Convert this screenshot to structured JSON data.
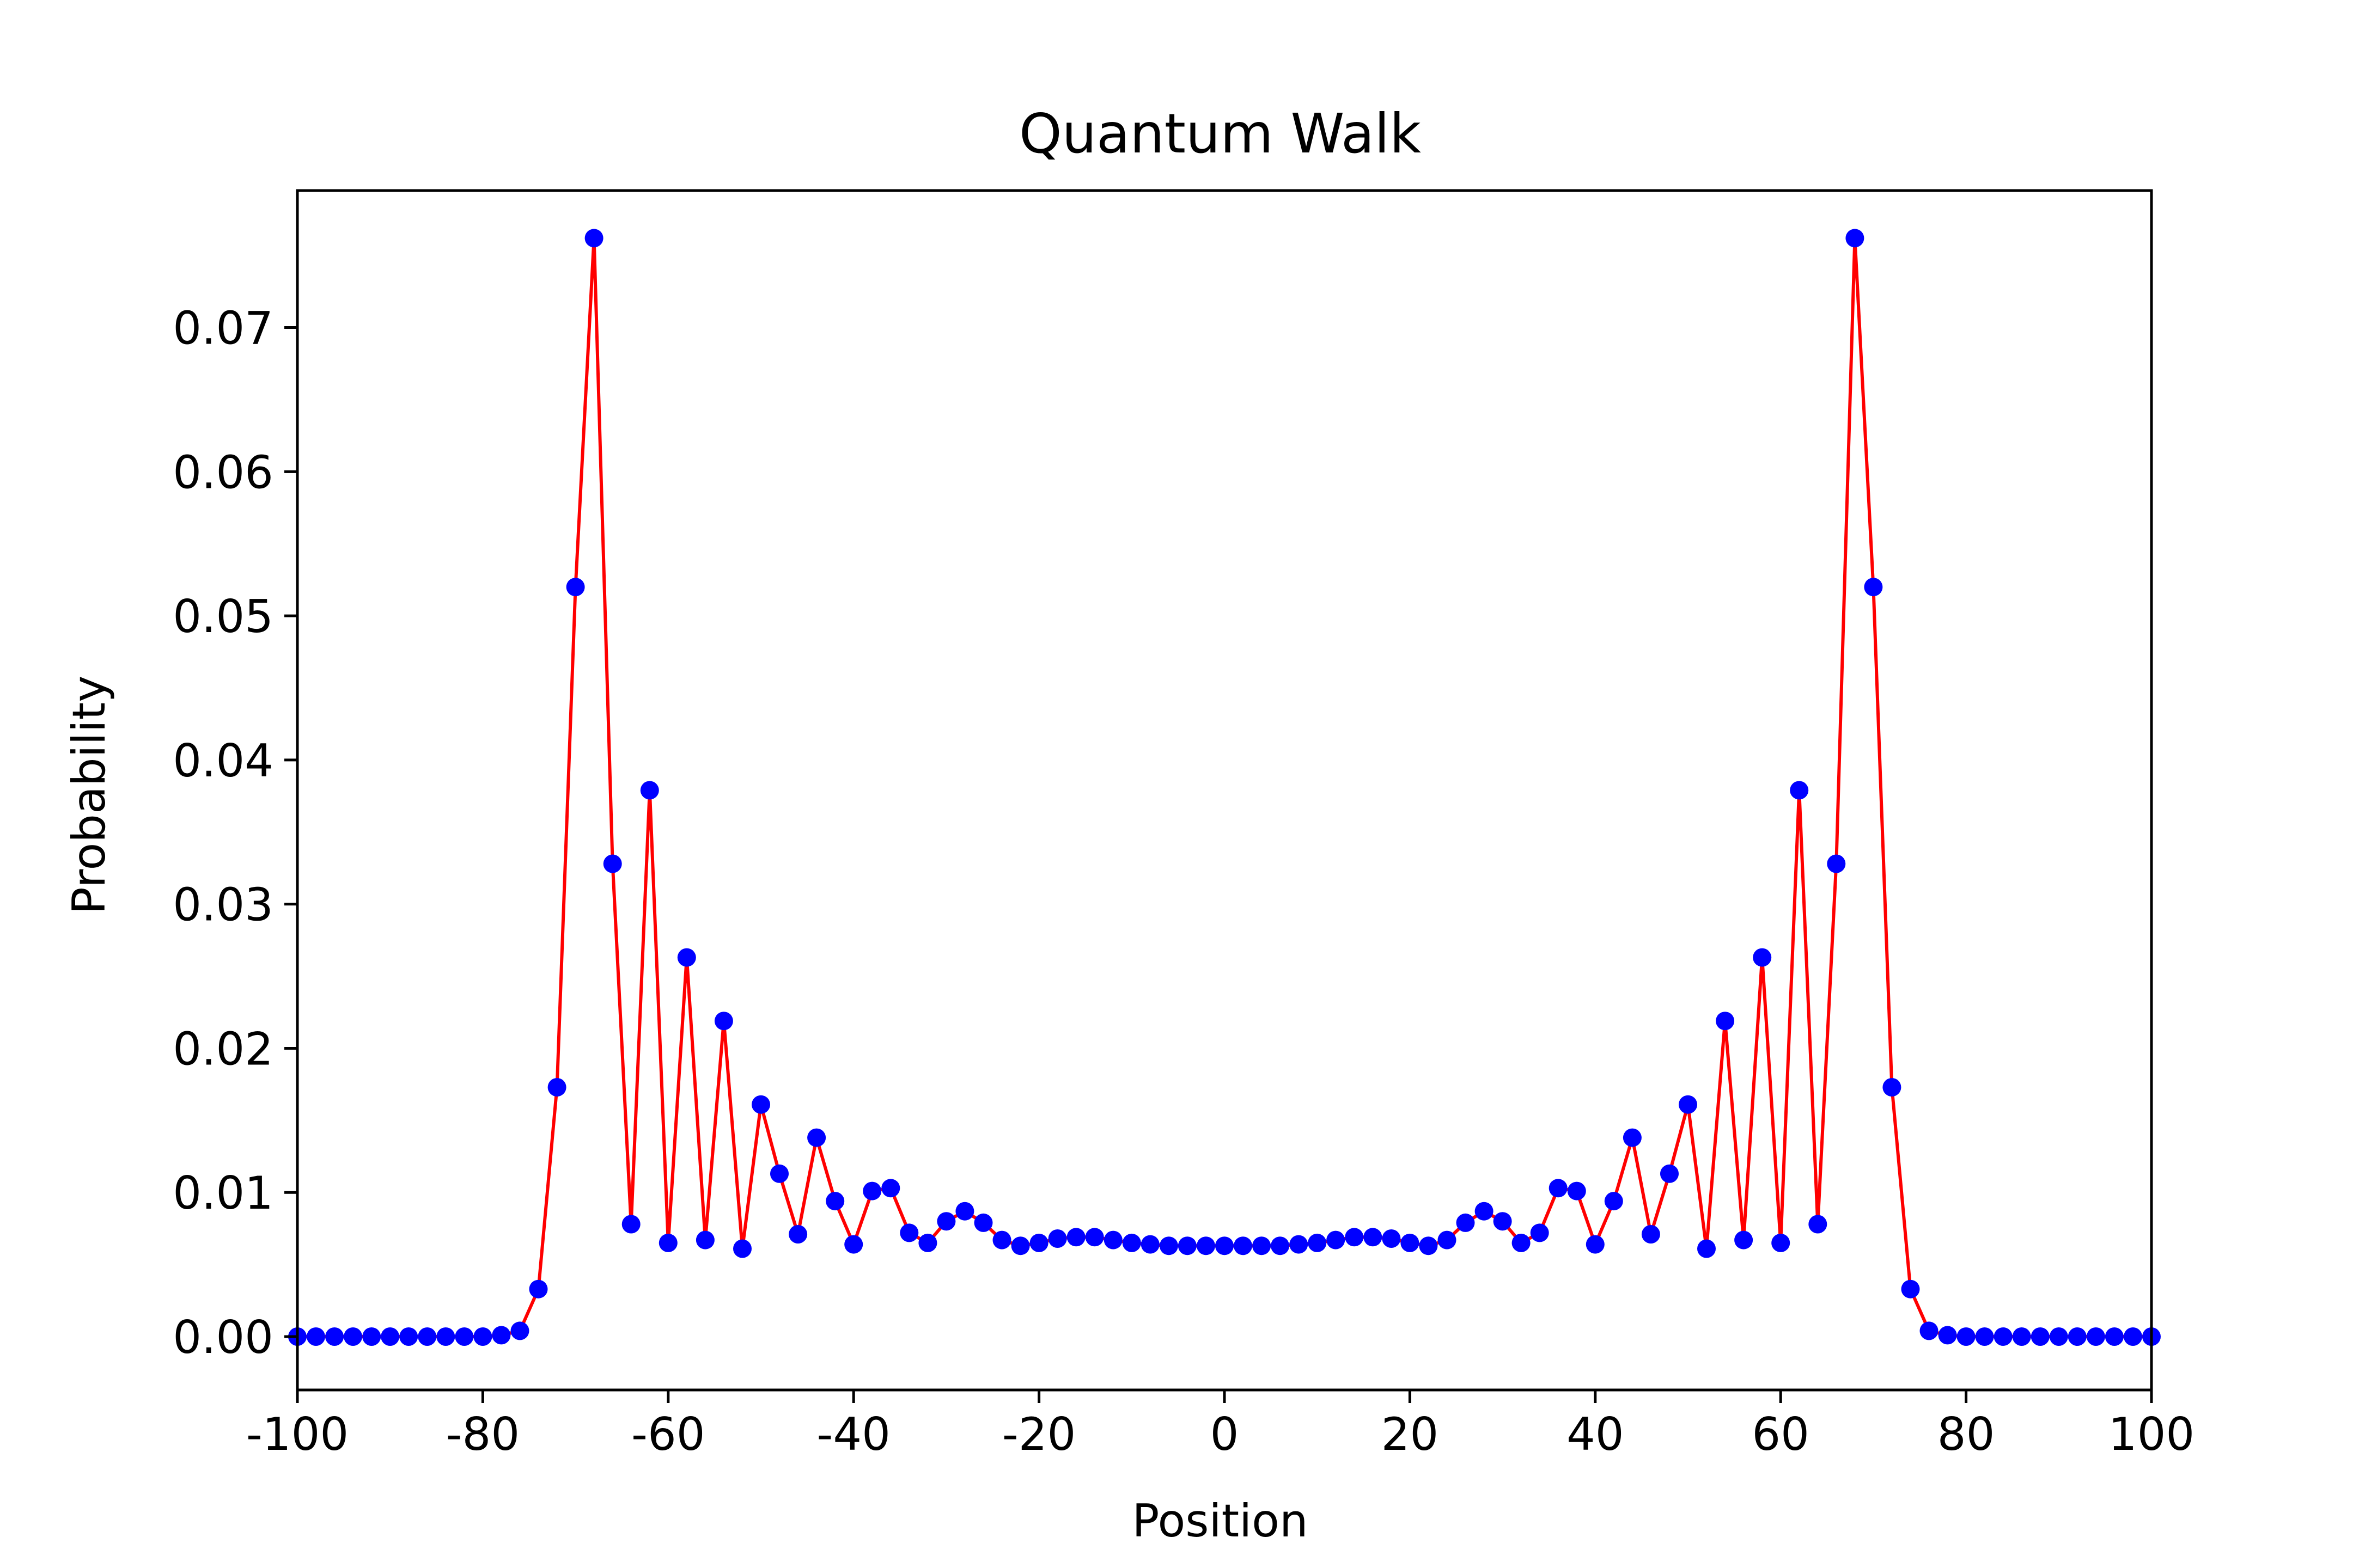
{
  "chart_data": {
    "type": "line",
    "title": "Quantum Walk",
    "xlabel": "Position",
    "ylabel": "Probability",
    "xlim": [
      -100,
      100
    ],
    "ylim": [
      -0.0037,
      0.0795
    ],
    "xticks": [
      -100,
      -80,
      -60,
      -40,
      -20,
      0,
      20,
      40,
      60,
      80,
      100
    ],
    "xtick_labels": [
      "-100",
      "-80",
      "-60",
      "-40",
      "-20",
      "0",
      "20",
      "40",
      "60",
      "80",
      "100"
    ],
    "yticks": [
      0.0,
      0.01,
      0.02,
      0.03,
      0.04,
      0.05,
      0.06,
      0.07
    ],
    "ytick_labels": [
      "0.00",
      "0.01",
      "0.02",
      "0.03",
      "0.04",
      "0.05",
      "0.06",
      "0.07"
    ],
    "grid": false,
    "line_color": "#ff0000",
    "marker_color": "#0000ff",
    "x": [
      -100,
      -98,
      -96,
      -94,
      -92,
      -90,
      -88,
      -86,
      -84,
      -82,
      -80,
      -78,
      -76,
      -74,
      -72,
      -70,
      -68,
      -66,
      -64,
      -62,
      -60,
      -58,
      -56,
      -54,
      -52,
      -50,
      -48,
      -46,
      -44,
      -42,
      -40,
      -38,
      -36,
      -34,
      -32,
      -30,
      -28,
      -26,
      -24,
      -22,
      -20,
      -18,
      -16,
      -14,
      -12,
      -10,
      -8,
      -6,
      -4,
      -2,
      0,
      2,
      4,
      6,
      8,
      10,
      12,
      14,
      16,
      18,
      20,
      22,
      24,
      26,
      28,
      30,
      32,
      34,
      36,
      38,
      40,
      42,
      44,
      46,
      48,
      50,
      52,
      54,
      56,
      58,
      60,
      62,
      64,
      66,
      68,
      70,
      72,
      74,
      76,
      78,
      80,
      82,
      84,
      86,
      88,
      90,
      92,
      94,
      96,
      98,
      100
    ],
    "y": [
      0.0,
      0.0,
      0.0,
      0.0,
      0.0,
      0.0,
      0.0,
      0.0,
      0.0,
      0.0,
      0.0,
      0.0001,
      0.0004,
      0.0033,
      0.0173,
      0.052,
      0.0762,
      0.0328,
      0.0078,
      0.0379,
      0.0065,
      0.0263,
      0.0067,
      0.0219,
      0.0061,
      0.0161,
      0.0113,
      0.0071,
      0.0138,
      0.0094,
      0.0064,
      0.0101,
      0.0103,
      0.0072,
      0.0065,
      0.008,
      0.0087,
      0.0079,
      0.0067,
      0.0063,
      0.0065,
      0.0068,
      0.0069,
      0.0069,
      0.0067,
      0.0065,
      0.0064,
      0.0063,
      0.0063,
      0.0063,
      0.0063,
      0.0063,
      0.0063,
      0.0063,
      0.0064,
      0.0065,
      0.0067,
      0.0069,
      0.0069,
      0.0068,
      0.0065,
      0.0063,
      0.0067,
      0.0079,
      0.0087,
      0.008,
      0.0065,
      0.0072,
      0.0103,
      0.0101,
      0.0064,
      0.0094,
      0.0138,
      0.0071,
      0.0113,
      0.0161,
      0.0061,
      0.0219,
      0.0067,
      0.0263,
      0.0065,
      0.0379,
      0.0078,
      0.0328,
      0.0762,
      0.052,
      0.0173,
      0.0033,
      0.0004,
      0.0001,
      0.0,
      0.0,
      0.0,
      0.0,
      0.0,
      0.0,
      0.0,
      0.0,
      0.0,
      0.0,
      0.0
    ]
  }
}
